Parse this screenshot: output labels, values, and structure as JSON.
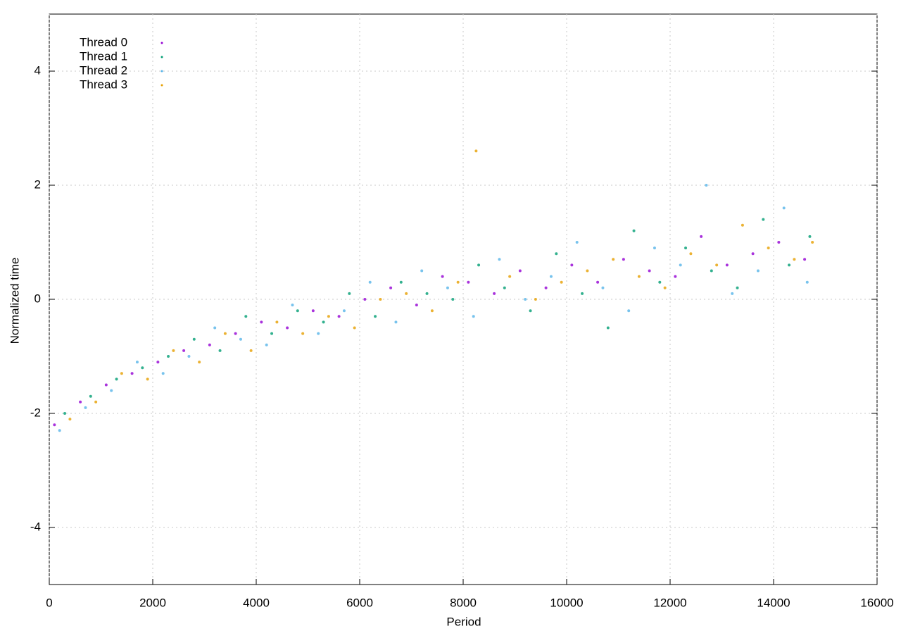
{
  "chart_data": {
    "type": "scatter",
    "xlabel": "Period",
    "ylabel": "Normalized time",
    "xlim": [
      0,
      16000
    ],
    "ylim": [
      -5,
      5
    ],
    "xticks": [
      0,
      2000,
      4000,
      6000,
      8000,
      10000,
      12000,
      14000,
      16000
    ],
    "yticks": [
      -4,
      -2,
      0,
      2,
      4
    ],
    "grid": true,
    "legend": "top-left",
    "series": [
      {
        "name": "Thread 0",
        "color": "#9400d3",
        "x": [
          100,
          600,
          1100,
          1600,
          2100,
          2600,
          3100,
          3600,
          4100,
          4600,
          5100,
          5600,
          6100,
          6600,
          7100,
          7600,
          8100,
          8600,
          9100,
          9600,
          10100,
          10600,
          11100,
          11600,
          12100,
          12600,
          13100,
          13600,
          14100,
          14600
        ],
        "values": [
          -2.2,
          -1.8,
          -1.5,
          -1.3,
          -1.1,
          -0.9,
          -0.8,
          -0.6,
          -0.4,
          -0.5,
          -0.2,
          -0.3,
          0.0,
          0.2,
          -0.1,
          0.4,
          0.3,
          0.1,
          0.5,
          0.2,
          0.6,
          0.3,
          0.7,
          0.5,
          0.4,
          1.1,
          0.6,
          0.8,
          1.0,
          0.7
        ]
      },
      {
        "name": "Thread 1",
        "color": "#009e73",
        "x": [
          300,
          800,
          1300,
          1800,
          2300,
          2800,
          3300,
          3800,
          4300,
          4800,
          5300,
          5800,
          6300,
          6800,
          7300,
          7800,
          8300,
          8800,
          9300,
          9800,
          10300,
          10800,
          11300,
          11800,
          12300,
          12800,
          13300,
          13800,
          14300,
          14700
        ],
        "values": [
          -2.0,
          -1.7,
          -1.4,
          -1.2,
          -1.0,
          -0.7,
          -0.9,
          -0.3,
          -0.6,
          -0.2,
          -0.4,
          0.1,
          -0.3,
          0.3,
          0.1,
          0.0,
          0.6,
          0.2,
          -0.2,
          0.8,
          0.1,
          -0.5,
          1.2,
          0.3,
          0.9,
          0.5,
          0.2,
          1.4,
          0.6,
          1.1
        ]
      },
      {
        "name": "Thread 2",
        "color": "#56b4e9",
        "x": [
          200,
          700,
          1200,
          1700,
          2200,
          2700,
          3200,
          3700,
          4200,
          4700,
          5200,
          5700,
          6200,
          6700,
          7200,
          7700,
          8200,
          8700,
          9200,
          9700,
          10200,
          10700,
          11200,
          11700,
          12200,
          12700,
          13200,
          13700,
          14200,
          14650
        ],
        "values": [
          -2.3,
          -1.9,
          -1.6,
          -1.1,
          -1.3,
          -1.0,
          -0.5,
          -0.7,
          -0.8,
          -0.1,
          -0.6,
          -0.2,
          0.3,
          -0.4,
          0.5,
          0.2,
          -0.3,
          0.7,
          0.0,
          0.4,
          1.0,
          0.2,
          -0.2,
          0.9,
          0.6,
          2.0,
          0.1,
          0.5,
          1.6,
          0.3
        ]
      },
      {
        "name": "Thread 3",
        "color": "#e69f00",
        "x": [
          400,
          900,
          1400,
          1900,
          2400,
          2900,
          3400,
          3900,
          4400,
          4900,
          5400,
          5900,
          6400,
          6900,
          7400,
          7900,
          8250,
          8900,
          9400,
          9900,
          10400,
          10900,
          11400,
          11900,
          12400,
          12900,
          13400,
          13900,
          14400,
          14750
        ],
        "values": [
          -2.1,
          -1.8,
          -1.3,
          -1.4,
          -0.9,
          -1.1,
          -0.6,
          -0.9,
          -0.4,
          -0.6,
          -0.3,
          -0.5,
          0.0,
          0.1,
          -0.2,
          0.3,
          2.6,
          0.4,
          0.0,
          0.3,
          0.5,
          0.7,
          0.4,
          0.2,
          0.8,
          0.6,
          1.3,
          0.9,
          0.7,
          1.0
        ]
      }
    ]
  }
}
